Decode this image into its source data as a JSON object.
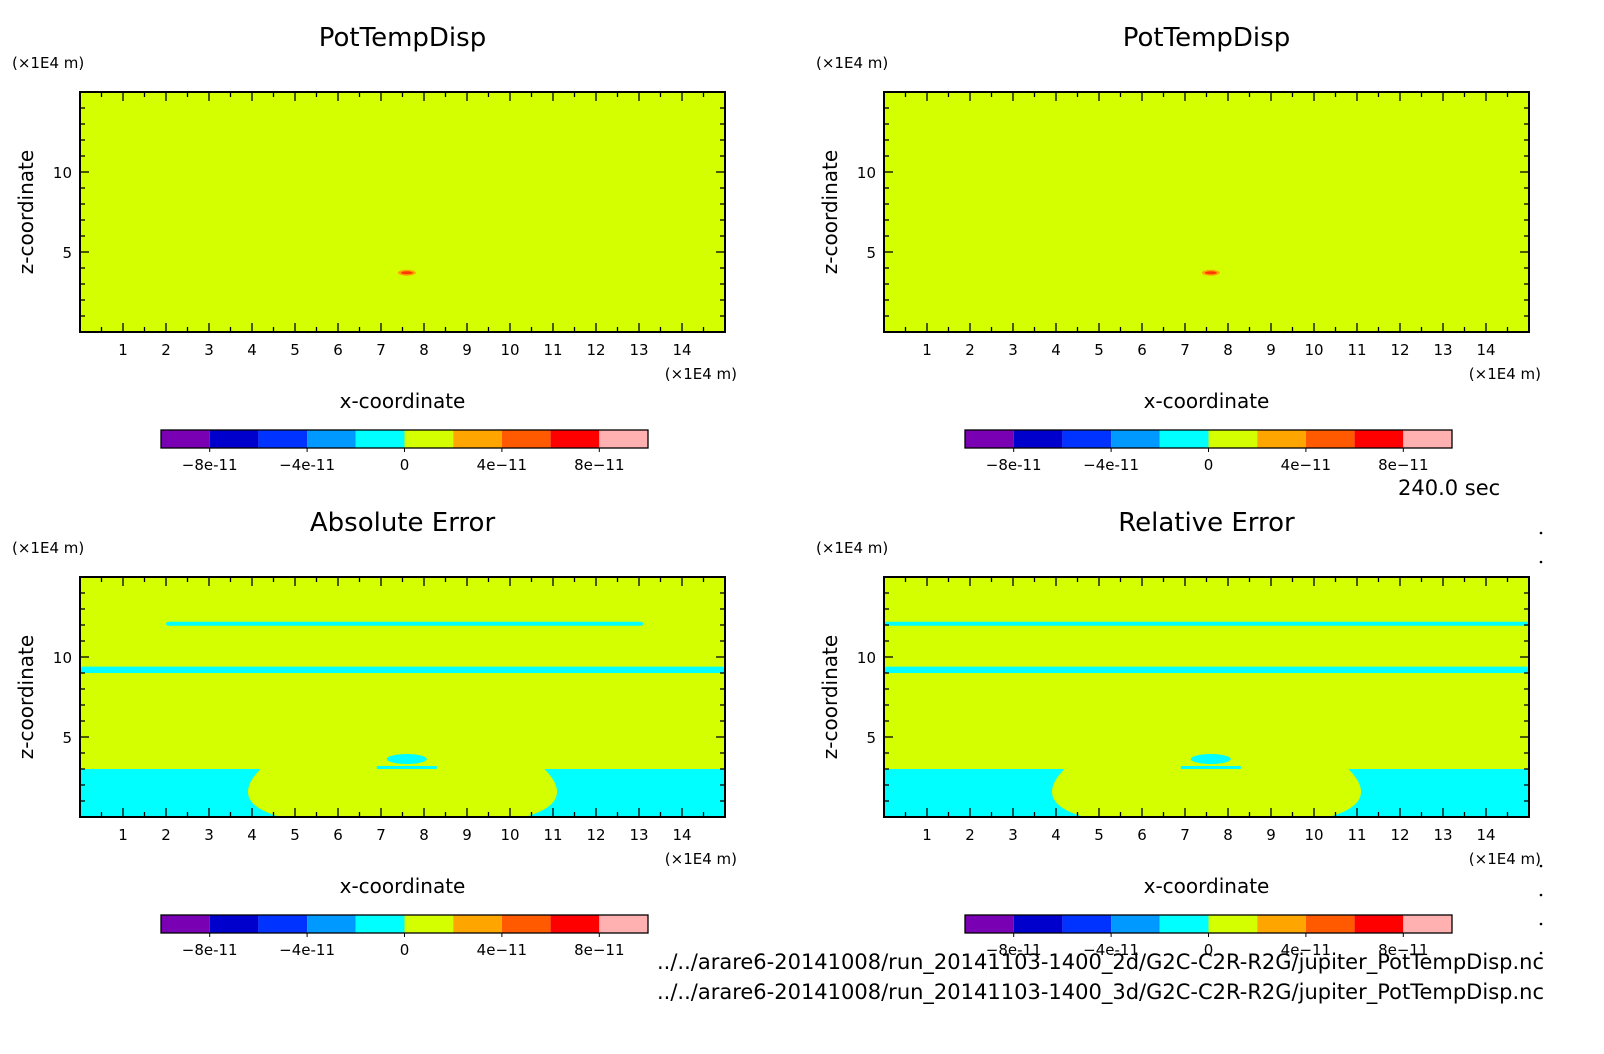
{
  "colors": {
    "background_field": "#d4ff00",
    "secondary_field": "#00ffff",
    "frame": "#000000"
  },
  "colorbar": {
    "colors": [
      "#7a00b3",
      "#0000cc",
      "#0033ff",
      "#0099ff",
      "#00ffff",
      "#d4ff00",
      "#ffa500",
      "#ff5a00",
      "#ff0000",
      "#ffb0b0"
    ],
    "tick_labels": [
      "-8e-11",
      "-4e-11",
      "0",
      "4e-11",
      "8e-11"
    ]
  },
  "axis_units": {
    "x": "(×1E4 m)",
    "y": "(×1E4 m)"
  },
  "time_label": "240.0 sec",
  "file_paths": [
    "../../arare6-20141008/run_20141103-1400_2d/G2C-C2R-R2G/jupiter_PotTempDisp.nc",
    "../../arare6-20141008/run_20141103-1400_3d/G2C-C2R-R2G/jupiter_PotTempDisp.nc"
  ],
  "chart_data": [
    {
      "type": "heatmap",
      "title": "PotTempDisp",
      "xlabel": "x-coordinate",
      "ylabel": "z-coordinate",
      "xlim": [
        0,
        15
      ],
      "ylim": [
        0,
        15
      ],
      "x_ticks": [
        1,
        2,
        3,
        4,
        5,
        6,
        7,
        8,
        9,
        10,
        11,
        12,
        13,
        14
      ],
      "y_ticks": [
        5,
        10
      ],
      "field": "uniform near 0",
      "features": [
        {
          "kind": "positive-blob",
          "x": 7.6,
          "z": 3.7,
          "value": "4e-11 to 8e-11"
        }
      ]
    },
    {
      "type": "heatmap",
      "title": "PotTempDisp",
      "xlabel": "x-coordinate",
      "ylabel": "z-coordinate",
      "xlim": [
        0,
        15
      ],
      "ylim": [
        0,
        15
      ],
      "x_ticks": [
        1,
        2,
        3,
        4,
        5,
        6,
        7,
        8,
        9,
        10,
        11,
        12,
        13,
        14
      ],
      "y_ticks": [
        5,
        10
      ],
      "field": "uniform near 0",
      "features": [
        {
          "kind": "positive-blob",
          "x": 7.6,
          "z": 3.7,
          "value": "4e-11 to 8e-11"
        }
      ]
    },
    {
      "type": "heatmap",
      "title": "Absolute Error",
      "xlabel": "x-coordinate",
      "ylabel": "z-coordinate",
      "xlim": [
        0,
        15
      ],
      "ylim": [
        0,
        15
      ],
      "x_ticks": [
        1,
        2,
        3,
        4,
        5,
        6,
        7,
        8,
        9,
        10,
        11,
        12,
        13,
        14
      ],
      "y_ticks": [
        5,
        10
      ],
      "field": "0 to 4e-11 with slightly negative bands",
      "bands": [
        {
          "z_from": 11.95,
          "z_to": 12.2,
          "x_from": 2.0,
          "x_to": 13.1
        },
        {
          "z_from": 9.0,
          "z_to": 9.4,
          "x_from": 0.0,
          "x_to": 15.0
        }
      ],
      "lower_region": {
        "z_top": 3.0,
        "dome_x": [
          4.2,
          10.8
        ],
        "dome_depth_z": 0
      }
    },
    {
      "type": "heatmap",
      "title": "Relative Error",
      "xlabel": "x-coordinate",
      "ylabel": "z-coordinate",
      "xlim": [
        0,
        15
      ],
      "ylim": [
        0,
        15
      ],
      "x_ticks": [
        1,
        2,
        3,
        4,
        5,
        6,
        7,
        8,
        9,
        10,
        11,
        12,
        13,
        14
      ],
      "y_ticks": [
        5,
        10
      ],
      "field": "0 to 4e-11 with slightly negative bands",
      "bands": [
        {
          "z_from": 11.95,
          "z_to": 12.2,
          "x_from": 0.0,
          "x_to": 15.0
        },
        {
          "z_from": 9.0,
          "z_to": 9.4,
          "x_from": 0.0,
          "x_to": 15.0
        }
      ],
      "lower_region": {
        "z_top": 3.0,
        "dome_x": [
          4.2,
          10.8
        ],
        "dome_depth_z": 0
      }
    }
  ]
}
